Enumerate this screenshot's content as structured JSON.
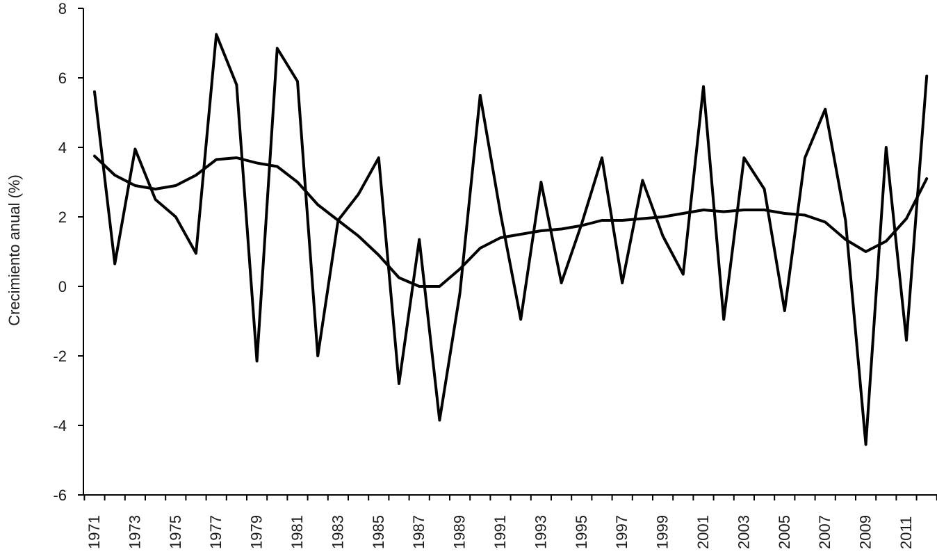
{
  "chart_data": {
    "type": "line",
    "title": "",
    "xlabel": "",
    "ylabel": "Crecimiento anual (%)",
    "ylim": [
      -6,
      8
    ],
    "yticks": [
      -6,
      -4,
      -2,
      0,
      2,
      4,
      6,
      8
    ],
    "ytick_labels": [
      "-6",
      "-4",
      "-2",
      "0",
      "2",
      "4",
      "6",
      "8"
    ],
    "x": [
      1971,
      1972,
      1973,
      1974,
      1975,
      1976,
      1977,
      1978,
      1979,
      1980,
      1981,
      1982,
      1983,
      1984,
      1985,
      1986,
      1987,
      1988,
      1989,
      1990,
      1991,
      1992,
      1993,
      1994,
      1995,
      1996,
      1997,
      1998,
      1999,
      2000,
      2001,
      2002,
      2003,
      2004,
      2005,
      2006,
      2007,
      2008,
      2009,
      2010,
      2011,
      2012
    ],
    "xtick_labels": [
      "1971",
      "1973",
      "1975",
      "1977",
      "1979",
      "1981",
      "1983",
      "1985",
      "1987",
      "1989",
      "1991",
      "1993",
      "1995",
      "1997",
      "1999",
      "2001",
      "2003",
      "2005",
      "2007",
      "2009",
      "2011"
    ],
    "grid": false,
    "line_color": "#000000",
    "series": [
      {
        "values": [
          5.6,
          0.65,
          3.95,
          2.5,
          2.0,
          0.95,
          7.25,
          5.8,
          -2.15,
          6.85,
          5.9,
          -2.0,
          1.9,
          2.65,
          3.7,
          -2.8,
          1.35,
          -3.85,
          -0.2,
          5.5,
          2.1,
          -0.95,
          3.0,
          0.1,
          1.8,
          3.7,
          0.1,
          3.05,
          1.45,
          0.35,
          5.75,
          -0.95,
          3.7,
          2.8,
          -0.7,
          3.7,
          5.1,
          1.9,
          -4.55,
          4.0,
          -1.55,
          6.05
        ]
      },
      {
        "values": [
          3.75,
          3.2,
          2.9,
          2.8,
          2.9,
          3.2,
          3.65,
          3.7,
          3.55,
          3.45,
          3.0,
          2.35,
          1.9,
          1.45,
          0.9,
          0.25,
          0.0,
          0.0,
          0.5,
          1.1,
          1.4,
          1.5,
          1.6,
          1.65,
          1.75,
          1.9,
          1.9,
          1.95,
          2.0,
          2.1,
          2.2,
          2.15,
          2.2,
          2.2,
          2.1,
          2.05,
          1.85,
          1.35,
          1.0,
          1.3,
          1.95,
          3.1
        ]
      }
    ]
  }
}
